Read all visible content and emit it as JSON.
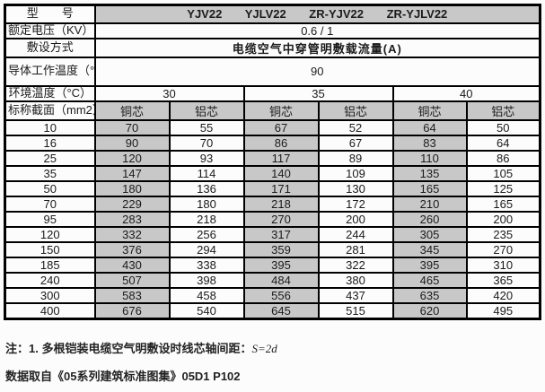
{
  "colors": {
    "cell_gray": "#c8c8c8",
    "border": "#000000",
    "background": "#fcfcfc"
  },
  "table": {
    "row_model": {
      "label": "型　　号",
      "value": "YJV22 YJLV22 ZR-YJV22 ZR-YJLV22"
    },
    "row_voltage": {
      "label": "额定电压（KV）",
      "value": "0.6 / 1"
    },
    "row_method": {
      "label": "敷设方式",
      "value": "电缆空气中穿管明敷载流量(A)"
    },
    "row_conductor_temp": {
      "label": "导体工作温度（°C）",
      "value": "90"
    },
    "row_ambient_temp": {
      "label": "环境温度（°C）",
      "values": [
        "30",
        "35",
        "40"
      ]
    },
    "row_core_header": {
      "label": "标称截面（mm2）",
      "values": [
        "铜芯",
        "铝芯",
        "铜芯",
        "铝芯",
        "铜芯",
        "铝芯"
      ]
    },
    "data_rows": [
      {
        "section": "10",
        "values": [
          "70",
          "55",
          "67",
          "52",
          "64",
          "50"
        ]
      },
      {
        "section": "16",
        "values": [
          "90",
          "70",
          "86",
          "67",
          "83",
          "64"
        ]
      },
      {
        "section": "25",
        "values": [
          "120",
          "93",
          "117",
          "89",
          "110",
          "86"
        ]
      },
      {
        "section": "35",
        "values": [
          "147",
          "114",
          "140",
          "109",
          "135",
          "105"
        ]
      },
      {
        "section": "50",
        "values": [
          "180",
          "136",
          "171",
          "130",
          "165",
          "125"
        ]
      },
      {
        "section": "70",
        "values": [
          "229",
          "180",
          "218",
          "172",
          "210",
          "165"
        ]
      },
      {
        "section": "95",
        "values": [
          "283",
          "218",
          "270",
          "200",
          "260",
          "200"
        ]
      },
      {
        "section": "120",
        "values": [
          "332",
          "256",
          "317",
          "244",
          "305",
          "235"
        ]
      },
      {
        "section": "150",
        "values": [
          "376",
          "294",
          "359",
          "281",
          "345",
          "270"
        ]
      },
      {
        "section": "185",
        "values": [
          "430",
          "338",
          "395",
          "322",
          "395",
          "310"
        ]
      },
      {
        "section": "240",
        "values": [
          "507",
          "398",
          "484",
          "380",
          "465",
          "365"
        ]
      },
      {
        "section": "300",
        "values": [
          "583",
          "458",
          "556",
          "437",
          "635",
          "420"
        ]
      },
      {
        "section": "400",
        "values": [
          "676",
          "540",
          "645",
          "515",
          "620",
          "495"
        ]
      }
    ]
  },
  "notes": {
    "note1_prefix": "注：1. 多根铠装电缆空气明敷设时线芯轴间距：",
    "note1_formula": "S=2d",
    "note2": "数据取自《05系列建筑标准图集》05D1 P102"
  }
}
